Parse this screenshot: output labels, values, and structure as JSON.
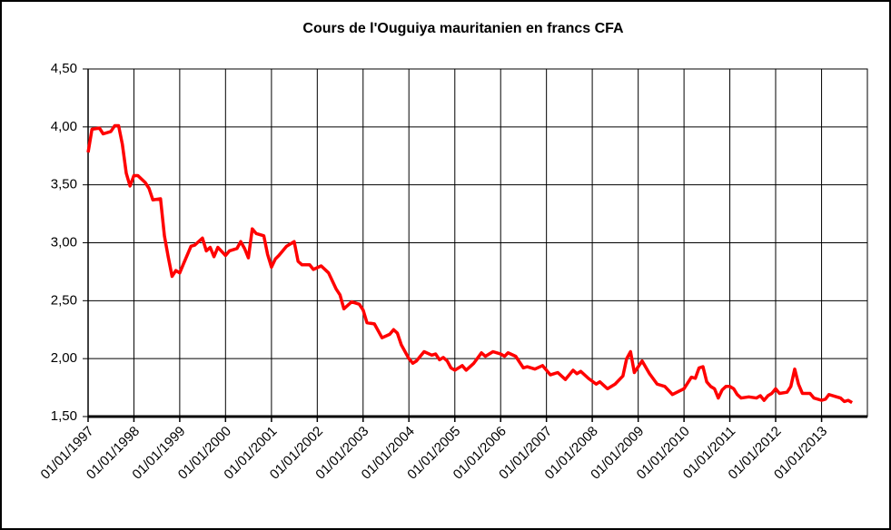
{
  "chart_data": {
    "type": "line",
    "title": "Cours de l'Ouguiya mauritanien en francs CFA",
    "x": [
      "1997-01-01",
      "1997-02-01",
      "1997-04-01",
      "1997-05-01",
      "1997-07-01",
      "1997-08-01",
      "1997-09-01",
      "1997-10-01",
      "1997-11-01",
      "1997-12-01",
      "1998-01-01",
      "1998-02-01",
      "1998-04-01",
      "1998-05-01",
      "1998-06-01",
      "1998-08-01",
      "1998-09-01",
      "1998-10-01",
      "1998-11-01",
      "1998-12-01",
      "1999-01-01",
      "1999-02-01",
      "1999-04-01",
      "1999-05-01",
      "1999-07-01",
      "1999-08-01",
      "1999-09-01",
      "1999-10-01",
      "1999-11-01",
      "2000-01-01",
      "2000-02-01",
      "2000-04-01",
      "2000-05-01",
      "2000-06-01",
      "2000-07-01",
      "2000-08-01",
      "2000-09-01",
      "2000-11-01",
      "2000-12-01",
      "2001-01-01",
      "2001-02-01",
      "2001-03-01",
      "2001-05-01",
      "2001-07-01",
      "2001-08-01",
      "2001-09-01",
      "2001-11-01",
      "2001-12-01",
      "2002-02-01",
      "2002-04-01",
      "2002-06-01",
      "2002-07-01",
      "2002-08-01",
      "2002-09-01",
      "2002-10-01",
      "2002-12-01",
      "2003-01-01",
      "2003-02-01",
      "2003-04-01",
      "2003-06-01",
      "2003-08-01",
      "2003-09-01",
      "2003-10-01",
      "2003-11-01",
      "2004-01-01",
      "2004-02-01",
      "2004-03-01",
      "2004-05-01",
      "2004-07-01",
      "2004-08-01",
      "2004-09-01",
      "2004-10-01",
      "2004-11-01",
      "2004-12-01",
      "2005-01-01",
      "2005-03-01",
      "2005-04-01",
      "2005-06-01",
      "2005-08-01",
      "2005-09-01",
      "2005-11-01",
      "2006-01-01",
      "2006-02-01",
      "2006-03-01",
      "2006-05-01",
      "2006-07-01",
      "2006-08-01",
      "2006-10-01",
      "2006-12-01",
      "2007-02-01",
      "2007-04-01",
      "2007-06-01",
      "2007-08-01",
      "2007-09-01",
      "2007-10-01",
      "2007-12-01",
      "2008-02-01",
      "2008-03-01",
      "2008-05-01",
      "2008-07-01",
      "2008-09-01",
      "2008-10-01",
      "2008-11-01",
      "2008-12-01",
      "2009-02-01",
      "2009-04-01",
      "2009-06-01",
      "2009-08-01",
      "2009-10-01",
      "2010-01-01",
      "2010-03-01",
      "2010-04-01",
      "2010-05-01",
      "2010-06-01",
      "2010-07-01",
      "2010-08-01",
      "2010-09-01",
      "2010-10-01",
      "2010-11-01",
      "2010-12-01",
      "2011-01-01",
      "2011-02-01",
      "2011-03-01",
      "2011-04-01",
      "2011-06-01",
      "2011-08-01",
      "2011-09-01",
      "2011-10-01",
      "2011-11-01",
      "2011-12-01",
      "2012-01-01",
      "2012-02-01",
      "2012-04-01",
      "2012-05-01",
      "2012-06-01",
      "2012-07-01",
      "2012-08-01",
      "2012-10-01",
      "2012-11-01",
      "2013-01-01",
      "2013-02-01",
      "2013-03-01",
      "2013-05-01",
      "2013-06-01",
      "2013-07-01",
      "2013-08-01",
      "2013-09-01"
    ],
    "series": [
      {
        "name": "Ouguiya",
        "color": "#ff0000",
        "values": [
          3.78,
          3.98,
          3.99,
          3.94,
          3.96,
          4.01,
          4.01,
          3.85,
          3.6,
          3.49,
          3.58,
          3.58,
          3.52,
          3.47,
          3.37,
          3.38,
          3.06,
          2.88,
          2.71,
          2.76,
          2.74,
          2.82,
          2.97,
          2.98,
          3.04,
          2.93,
          2.96,
          2.88,
          2.96,
          2.89,
          2.93,
          2.95,
          3.01,
          2.95,
          2.87,
          3.12,
          3.08,
          3.06,
          2.9,
          2.79,
          2.86,
          2.89,
          2.97,
          3.01,
          2.84,
          2.81,
          2.81,
          2.77,
          2.8,
          2.74,
          2.6,
          2.55,
          2.43,
          2.46,
          2.49,
          2.47,
          2.42,
          2.31,
          2.3,
          2.18,
          2.21,
          2.25,
          2.22,
          2.12,
          2.0,
          1.96,
          1.98,
          2.06,
          2.03,
          2.04,
          1.99,
          2.01,
          1.98,
          1.92,
          1.9,
          1.94,
          1.9,
          1.96,
          2.05,
          2.02,
          2.06,
          2.04,
          2.02,
          2.05,
          2.02,
          1.92,
          1.93,
          1.91,
          1.94,
          1.86,
          1.88,
          1.82,
          1.9,
          1.87,
          1.89,
          1.83,
          1.78,
          1.8,
          1.74,
          1.78,
          1.85,
          2.0,
          2.06,
          1.88,
          1.98,
          1.87,
          1.78,
          1.76,
          1.69,
          1.74,
          1.84,
          1.83,
          1.92,
          1.93,
          1.8,
          1.76,
          1.74,
          1.66,
          1.73,
          1.76,
          1.76,
          1.74,
          1.69,
          1.66,
          1.67,
          1.66,
          1.68,
          1.64,
          1.68,
          1.7,
          1.74,
          1.7,
          1.71,
          1.76,
          1.91,
          1.78,
          1.7,
          1.7,
          1.66,
          1.64,
          1.65,
          1.69,
          1.67,
          1.66,
          1.63,
          1.64,
          1.62
        ]
      }
    ],
    "xlim": [
      "1997-01-01",
      "2014-01-01"
    ],
    "xticks": [
      {
        "value": "1997-01-01",
        "label": "01/01/1997"
      },
      {
        "value": "1998-01-01",
        "label": "01/01/1998"
      },
      {
        "value": "1999-01-01",
        "label": "01/01/1999"
      },
      {
        "value": "2000-01-01",
        "label": "01/01/2000"
      },
      {
        "value": "2001-01-01",
        "label": "01/01/2001"
      },
      {
        "value": "2002-01-01",
        "label": "01/01/2002"
      },
      {
        "value": "2003-01-01",
        "label": "01/01/2003"
      },
      {
        "value": "2004-01-01",
        "label": "01/01/2004"
      },
      {
        "value": "2005-01-01",
        "label": "01/01/2005"
      },
      {
        "value": "2006-01-01",
        "label": "01/01/2006"
      },
      {
        "value": "2007-01-01",
        "label": "01/01/2007"
      },
      {
        "value": "2008-01-01",
        "label": "01/01/2008"
      },
      {
        "value": "2009-01-01",
        "label": "01/01/2009"
      },
      {
        "value": "2010-01-01",
        "label": "01/01/2010"
      },
      {
        "value": "2011-01-01",
        "label": "01/01/2011"
      },
      {
        "value": "2012-01-01",
        "label": "01/01/2012"
      },
      {
        "value": "2013-01-01",
        "label": "01/01/2013"
      }
    ],
    "ylim": [
      1.5,
      4.5
    ],
    "yticks": [
      {
        "value": 1.5,
        "label": "1,50"
      },
      {
        "value": 2,
        "label": "2,00"
      },
      {
        "value": 2.5,
        "label": "2,50"
      },
      {
        "value": 3,
        "label": "3,00"
      },
      {
        "value": 3.5,
        "label": "3,50"
      },
      {
        "value": 4,
        "label": "4,00"
      },
      {
        "value": 4.5,
        "label": "4,50"
      }
    ],
    "grid": true
  }
}
